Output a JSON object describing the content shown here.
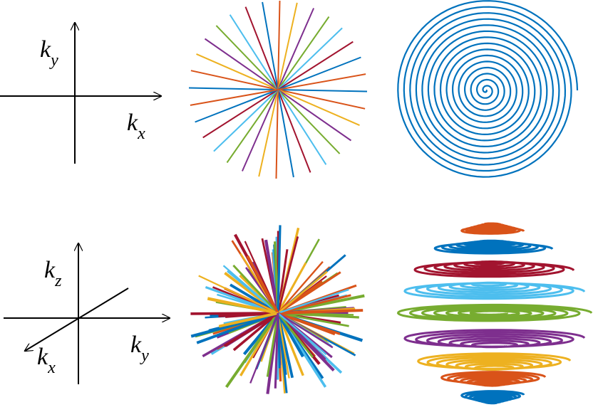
{
  "panels": {
    "axes2d": {
      "vertical": "k",
      "vertical_sub": "y",
      "horizontal": "k",
      "horizontal_sub": "x"
    },
    "axes3d": {
      "vertical": "k",
      "vertical_sub": "z",
      "horizontal": "k",
      "horizontal_sub": "y",
      "diagonal": "k",
      "diagonal_sub": "x"
    },
    "radial2d": {
      "spoke_count": 16,
      "colors": [
        "#0072BD",
        "#D95319",
        "#EDB120",
        "#7E2F8E",
        "#77AC30",
        "#4DBEEE",
        "#A2142F"
      ]
    },
    "spiral2d": {
      "turns": 15,
      "color": "#0072BD"
    },
    "radial3d": {
      "colors": [
        "#0072BD",
        "#D95319",
        "#EDB120",
        "#7E2F8E",
        "#77AC30",
        "#4DBEEE",
        "#A2142F"
      ]
    },
    "stack_of_cones": {
      "layer_colors": [
        "#D95319",
        "#0072BD",
        "#A2142F",
        "#4DBEEE",
        "#77AC30",
        "#7E2F8E",
        "#EDB120",
        "#D95319",
        "#0072BD"
      ]
    }
  }
}
